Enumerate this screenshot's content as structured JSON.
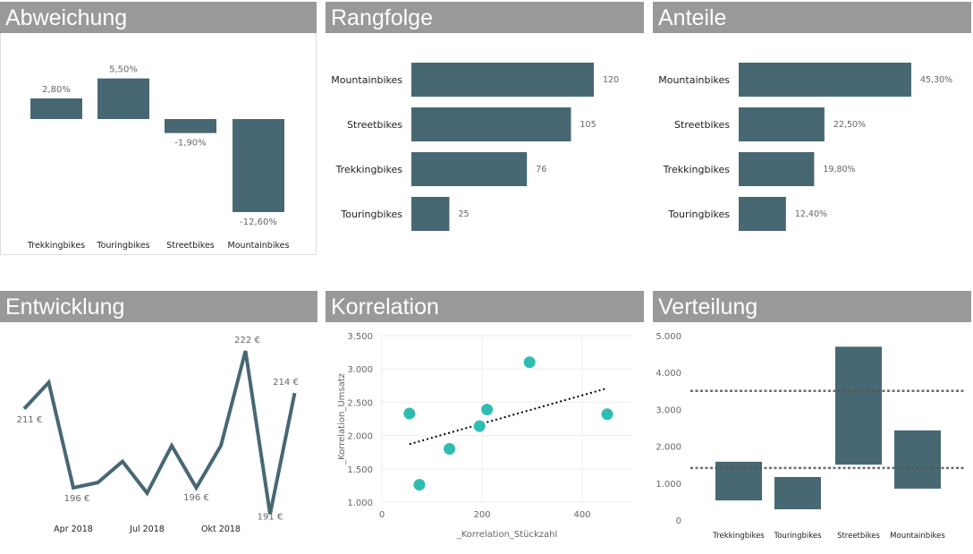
{
  "colors": {
    "bar": "#476873",
    "title_bg": "#999999",
    "scatter": "#2EBDB0",
    "text": "#666666"
  },
  "chart_data": [
    {
      "type": "bar",
      "title": "Abweichung",
      "categories": [
        "Trekkingbikes",
        "Touringbikes",
        "Streetbikes",
        "Mountainbikes"
      ],
      "values": [
        2.8,
        5.5,
        -1.9,
        -12.6
      ],
      "labels": [
        "2,80%",
        "5,50%",
        "-1,90%",
        "-12,60%"
      ]
    },
    {
      "type": "bar",
      "orientation": "horizontal",
      "title": "Rangfolge",
      "categories": [
        "Mountainbikes",
        "Streetbikes",
        "Trekkingbikes",
        "Touringbikes"
      ],
      "values": [
        120,
        105,
        76,
        25
      ],
      "labels": [
        "120",
        "105",
        "76",
        "25"
      ]
    },
    {
      "type": "bar",
      "orientation": "horizontal",
      "title": "Anteile",
      "categories": [
        "Mountainbikes",
        "Streetbikes",
        "Trekkingbikes",
        "Touringbikes"
      ],
      "values": [
        45.3,
        22.5,
        19.8,
        12.4
      ],
      "labels": [
        "45,30%",
        "22,50%",
        "19,80%",
        "12,40%"
      ]
    },
    {
      "type": "line",
      "title": "Entwicklung",
      "x": [
        "2018-02",
        "2018-03",
        "2018-04",
        "2018-05",
        "2018-06",
        "2018-07",
        "2018-08",
        "2018-09",
        "2018-10",
        "2018-11",
        "2018-12",
        "2019-01"
      ],
      "values": [
        211,
        216,
        196,
        197,
        201,
        195,
        204,
        196,
        204,
        222,
        191,
        214
      ],
      "labels": [
        "211 €",
        "",
        "196 €",
        "",
        "",
        "",
        "",
        "196 €",
        "",
        "222 €",
        "191 €",
        "214 €"
      ],
      "xticks": [
        {
          "at": "2018-04",
          "label": "Apr 2018"
        },
        {
          "at": "2018-07",
          "label": "Jul 2018"
        },
        {
          "at": "2018-10",
          "label": "Okt 2018"
        }
      ]
    },
    {
      "type": "scatter",
      "title": "Korrelation",
      "xlabel": "_Korrelation_Stückzahl",
      "ylabel": "_Korrelation_Umsatz",
      "xlim": [
        0,
        500
      ],
      "ylim": [
        1000,
        3500
      ],
      "xticks": [
        {
          "v": 0,
          "label": "0"
        },
        {
          "v": 200,
          "label": "200"
        },
        {
          "v": 400,
          "label": "400"
        }
      ],
      "yticks": [
        {
          "v": 1000,
          "label": "1.000"
        },
        {
          "v": 1500,
          "label": "1.500"
        },
        {
          "v": 2000,
          "label": "2.000"
        },
        {
          "v": 2500,
          "label": "2.500"
        },
        {
          "v": 3000,
          "label": "3.000"
        },
        {
          "v": 3500,
          "label": "3.500"
        }
      ],
      "points": [
        [
          55,
          2330
        ],
        [
          75,
          1260
        ],
        [
          135,
          1800
        ],
        [
          195,
          2140
        ],
        [
          210,
          2390
        ],
        [
          295,
          3100
        ],
        [
          450,
          2320
        ]
      ],
      "trendline": [
        [
          55,
          1870
        ],
        [
          450,
          2710
        ]
      ],
      "grid": true
    },
    {
      "type": "bar",
      "subtype": "floating-range",
      "title": "Verteilung",
      "categories": [
        "Trekkingbikes",
        "Touringbikes",
        "Streetbikes",
        "Mountainbikes"
      ],
      "ranges": [
        [
          530,
          1580
        ],
        [
          290,
          1165
        ],
        [
          1500,
          4700
        ],
        [
          850,
          2430
        ]
      ],
      "ylim": [
        0,
        5000
      ],
      "yticks": [
        {
          "v": 0,
          "label": "0"
        },
        {
          "v": 1000,
          "label": "1.000"
        },
        {
          "v": 2000,
          "label": "2.000"
        },
        {
          "v": 3000,
          "label": "3.000"
        },
        {
          "v": 4000,
          "label": "4.000"
        },
        {
          "v": 5000,
          "label": "5.000"
        }
      ],
      "reference_lines": [
        3500,
        1410
      ]
    }
  ]
}
